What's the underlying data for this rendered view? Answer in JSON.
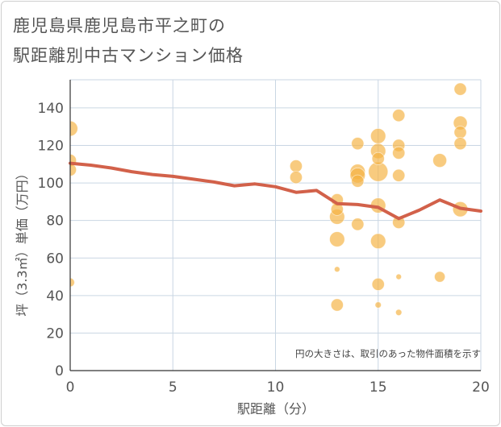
{
  "header": {
    "title_line1": "鹿児島県鹿児島市平之町の",
    "title_line2": "駅距離別中古マンション価格"
  },
  "chart_data": {
    "type": "scatter",
    "title": "鹿児島県鹿児島市平之町の駅距離別中古マンション価格",
    "xlabel": "駅距離（分）",
    "ylabel": "坪（3.3㎡）単価（万円）",
    "xlim": [
      0,
      20
    ],
    "ylim": [
      0,
      155
    ],
    "x_ticks": [
      0,
      5,
      10,
      15,
      20
    ],
    "y_ticks": [
      0,
      20,
      40,
      60,
      80,
      100,
      120,
      140
    ],
    "grid": true,
    "note": "円の大きさは、取引のあった物件面積を示す",
    "colors": {
      "bubble": "#f5b342",
      "trend": "#d2614a",
      "grid": "#c9d6e3",
      "text": "#555555"
    },
    "bubbles": [
      {
        "x": 0,
        "y": 129,
        "size": 3
      },
      {
        "x": 0,
        "y": 112,
        "size": 2
      },
      {
        "x": 0,
        "y": 107,
        "size": 2
      },
      {
        "x": 0,
        "y": 47,
        "size": 1
      },
      {
        "x": 11,
        "y": 109,
        "size": 2
      },
      {
        "x": 11,
        "y": 103,
        "size": 2
      },
      {
        "x": 13,
        "y": 91,
        "size": 2
      },
      {
        "x": 13,
        "y": 86,
        "size": 2
      },
      {
        "x": 13,
        "y": 82,
        "size": 3
      },
      {
        "x": 13,
        "y": 70,
        "size": 3
      },
      {
        "x": 13,
        "y": 54,
        "size": 0.4
      },
      {
        "x": 13,
        "y": 35,
        "size": 2
      },
      {
        "x": 14,
        "y": 121,
        "size": 2
      },
      {
        "x": 14,
        "y": 106,
        "size": 3
      },
      {
        "x": 14,
        "y": 104,
        "size": 3
      },
      {
        "x": 14,
        "y": 101,
        "size": 2
      },
      {
        "x": 14,
        "y": 78,
        "size": 2
      },
      {
        "x": 15,
        "y": 125,
        "size": 3
      },
      {
        "x": 15,
        "y": 117,
        "size": 3
      },
      {
        "x": 15,
        "y": 113,
        "size": 2
      },
      {
        "x": 15,
        "y": 106,
        "size": 5
      },
      {
        "x": 15,
        "y": 88,
        "size": 3
      },
      {
        "x": 15,
        "y": 69,
        "size": 3
      },
      {
        "x": 15,
        "y": 46,
        "size": 2
      },
      {
        "x": 15,
        "y": 35,
        "size": 0.5
      },
      {
        "x": 16,
        "y": 136,
        "size": 2
      },
      {
        "x": 16,
        "y": 120,
        "size": 2
      },
      {
        "x": 16,
        "y": 116,
        "size": 2
      },
      {
        "x": 16,
        "y": 104,
        "size": 2
      },
      {
        "x": 16,
        "y": 79,
        "size": 2
      },
      {
        "x": 16,
        "y": 50,
        "size": 0.4
      },
      {
        "x": 16,
        "y": 31,
        "size": 0.5
      },
      {
        "x": 18,
        "y": 112,
        "size": 2.5
      },
      {
        "x": 18,
        "y": 50,
        "size": 1.5
      },
      {
        "x": 19,
        "y": 150,
        "size": 2
      },
      {
        "x": 19,
        "y": 132,
        "size": 2.5
      },
      {
        "x": 19,
        "y": 127,
        "size": 2
      },
      {
        "x": 19,
        "y": 121,
        "size": 2
      },
      {
        "x": 19,
        "y": 86,
        "size": 3
      }
    ],
    "trend_line": {
      "x": [
        0,
        1,
        2,
        3,
        4,
        5,
        6,
        7,
        8,
        9,
        10,
        11,
        12,
        13,
        14,
        15,
        16,
        17,
        18,
        19,
        20
      ],
      "y": [
        110.5,
        109.5,
        108,
        106,
        104.5,
        103.5,
        102,
        100.5,
        98.5,
        99.5,
        98,
        95,
        96,
        89,
        88.5,
        87,
        81,
        85.5,
        91,
        86.5,
        85
      ]
    }
  }
}
